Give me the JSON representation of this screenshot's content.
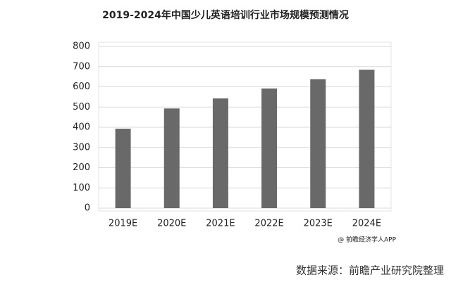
{
  "chart_data": {
    "type": "bar",
    "title": "2019-2024年中国少儿英语培训行业市场规模预测情况",
    "categories": [
      "2019E",
      "2020E",
      "2021E",
      "2022E",
      "2023E",
      "2024E"
    ],
    "values": [
      393,
      493,
      543,
      592,
      638,
      685
    ],
    "color": "#696969",
    "ylim": [
      0,
      800
    ],
    "yticks": [
      0,
      100,
      200,
      300,
      400,
      500,
      600,
      700,
      800
    ],
    "grid": true,
    "annotations": [
      "@ 前瞻经济学人APP",
      "数据来源：前瞻产业研究院整理"
    ]
  }
}
